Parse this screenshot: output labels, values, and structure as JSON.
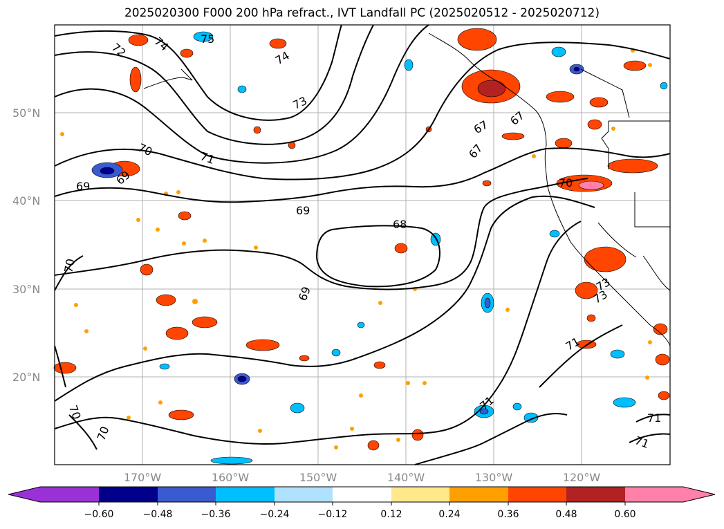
{
  "title": "2025020300 F000 200 hPa refract., IVT Landfall PC (2025020512 - 2025020712)",
  "map": {
    "lat_labels": [
      "50°N",
      "40°N",
      "30°N",
      "20°N"
    ],
    "lon_labels": [
      "170°W",
      "160°W",
      "150°W",
      "140°W",
      "130°W",
      "120°W"
    ],
    "contour_labels": [
      "72",
      "74",
      "75",
      "74",
      "73",
      "71",
      "70",
      "69",
      "69",
      "69",
      "68",
      "69",
      "70",
      "67",
      "67",
      "67",
      "70",
      "73",
      "73",
      "71",
      "71",
      "71",
      "71",
      "70",
      "70"
    ],
    "grid": true
  },
  "colorbar": {
    "tick_labels": [
      "−0.60",
      "−0.48",
      "−0.36",
      "−0.24",
      "−0.12",
      "0.12",
      "0.24",
      "0.36",
      "0.48",
      "0.60"
    ],
    "colors": [
      "#9a31d6",
      "#00008b",
      "#3a5bd0",
      "#00bfff",
      "#aee2ff",
      "#ffffff",
      "#ffe98a",
      "#ffa000",
      "#ff4500",
      "#b22222",
      "#ff80a8"
    ]
  }
}
